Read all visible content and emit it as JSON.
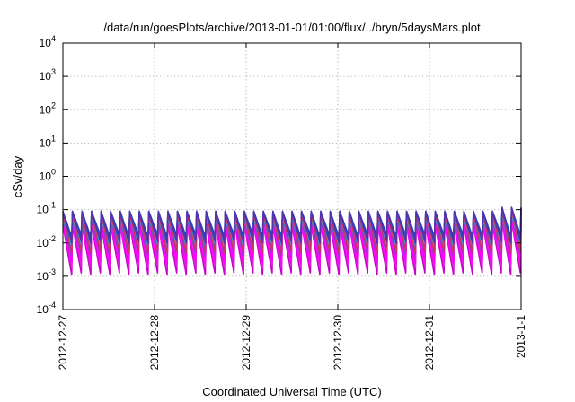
{
  "chart_data": {
    "type": "line",
    "title": "/data/run/goesPlots/archive/2013-01-01/01:00/flux/../bryn/5daysMars.plot",
    "xlabel": "Coordinated Universal Time (UTC)",
    "ylabel": "cSv/day",
    "x_ticks": [
      "2012-12-27",
      "2012-12-28",
      "2012-12-29",
      "2012-12-30",
      "2012-12-31",
      "2013-1-1"
    ],
    "y_ticks": [
      {
        "value": 0.0001,
        "base": "10",
        "exp": "-4"
      },
      {
        "value": 0.001,
        "base": "10",
        "exp": "-3"
      },
      {
        "value": 0.01,
        "base": "10",
        "exp": "-2"
      },
      {
        "value": 0.1,
        "base": "10",
        "exp": "-1"
      },
      {
        "value": 1,
        "base": "10",
        "exp": "0"
      },
      {
        "value": 10,
        "base": "10",
        "exp": "1"
      },
      {
        "value": 100,
        "base": "10",
        "exp": "2"
      },
      {
        "value": 1000,
        "base": "10",
        "exp": "3"
      },
      {
        "value": 10000,
        "base": "10",
        "exp": "4"
      }
    ],
    "xlim": [
      "2012-12-27",
      "2013-01-01"
    ],
    "ylim": [
      0.0001,
      10000
    ],
    "yscale": "log",
    "grid": true,
    "legend": "none",
    "pattern": {
      "description_free": true,
      "start": "2012-12-27",
      "end": "2013-01-01",
      "cycles_per_day": 9.5,
      "final_cycle_scale": 1.3
    },
    "series": [
      {
        "color": "#cc00cc",
        "peak": 0.035,
        "trough": 0.0011
      },
      {
        "color": "#e020e0",
        "peak": 0.045,
        "trough": 0.0018
      },
      {
        "color": "#9933cc",
        "peak": 0.055,
        "trough": 0.0035
      },
      {
        "color": "#ff00ff",
        "peak": 0.03,
        "trough": 0.0025
      },
      {
        "color": "#00cccc",
        "peak": 0.06,
        "trough": 0.006
      },
      {
        "color": "#22aadd",
        "peak": 0.07,
        "trough": 0.008
      },
      {
        "color": "#3366cc",
        "peak": 0.08,
        "trough": 0.012
      },
      {
        "color": "#2244bb",
        "peak": 0.09,
        "trough": 0.015
      },
      {
        "color": "#cc3366",
        "peak": 0.075,
        "trough": 0.005
      },
      {
        "color": "#5533aa",
        "peak": 0.085,
        "trough": 0.01
      }
    ]
  }
}
